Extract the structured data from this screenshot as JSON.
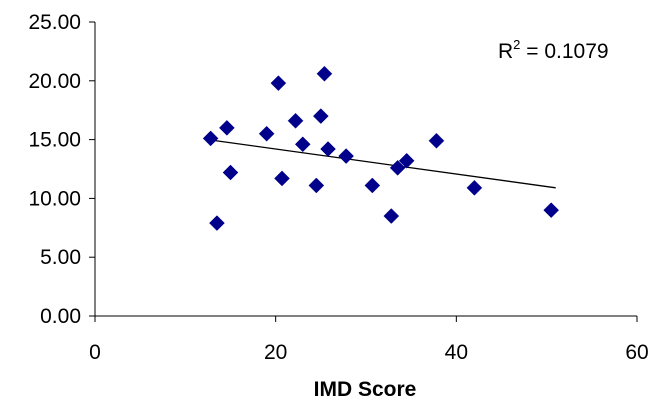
{
  "chart_data": {
    "type": "scatter",
    "title": "",
    "xlabel": "IMD Score",
    "ylabel": "",
    "xlim": [
      0,
      60
    ],
    "ylim": [
      0,
      25
    ],
    "x_ticks": [
      "0",
      "20",
      "40",
      "60"
    ],
    "y_ticks": [
      "0.00",
      "5.00",
      "10.00",
      "15.00",
      "20.00",
      "25.00"
    ],
    "grid": false,
    "legend": "none",
    "series": [
      {
        "marker": "diamond",
        "color": "#00008b",
        "points": [
          {
            "x": 12.8,
            "y": 15.1
          },
          {
            "x": 13.5,
            "y": 7.9
          },
          {
            "x": 14.6,
            "y": 16.0
          },
          {
            "x": 15.0,
            "y": 12.2
          },
          {
            "x": 19.0,
            "y": 15.5
          },
          {
            "x": 20.3,
            "y": 19.8
          },
          {
            "x": 20.7,
            "y": 11.7
          },
          {
            "x": 22.2,
            "y": 16.6
          },
          {
            "x": 23.0,
            "y": 14.6
          },
          {
            "x": 24.5,
            "y": 11.1
          },
          {
            "x": 25.0,
            "y": 17.0
          },
          {
            "x": 25.4,
            "y": 20.6
          },
          {
            "x": 25.8,
            "y": 14.2
          },
          {
            "x": 27.8,
            "y": 13.6
          },
          {
            "x": 30.7,
            "y": 11.1
          },
          {
            "x": 32.8,
            "y": 8.5
          },
          {
            "x": 33.5,
            "y": 12.6
          },
          {
            "x": 34.5,
            "y": 13.2
          },
          {
            "x": 37.8,
            "y": 14.9
          },
          {
            "x": 42.0,
            "y": 10.9
          },
          {
            "x": 50.5,
            "y": 9.0
          }
        ]
      }
    ],
    "trendline": {
      "type": "linear",
      "x": [
        12.5,
        51.0
      ],
      "y": [
        15.0,
        10.9
      ],
      "color": "#000000"
    },
    "annotations": [
      {
        "text_base": "R",
        "text_sup": "2",
        "text_rest": " = 0.1079",
        "placement": "top-right"
      }
    ]
  }
}
